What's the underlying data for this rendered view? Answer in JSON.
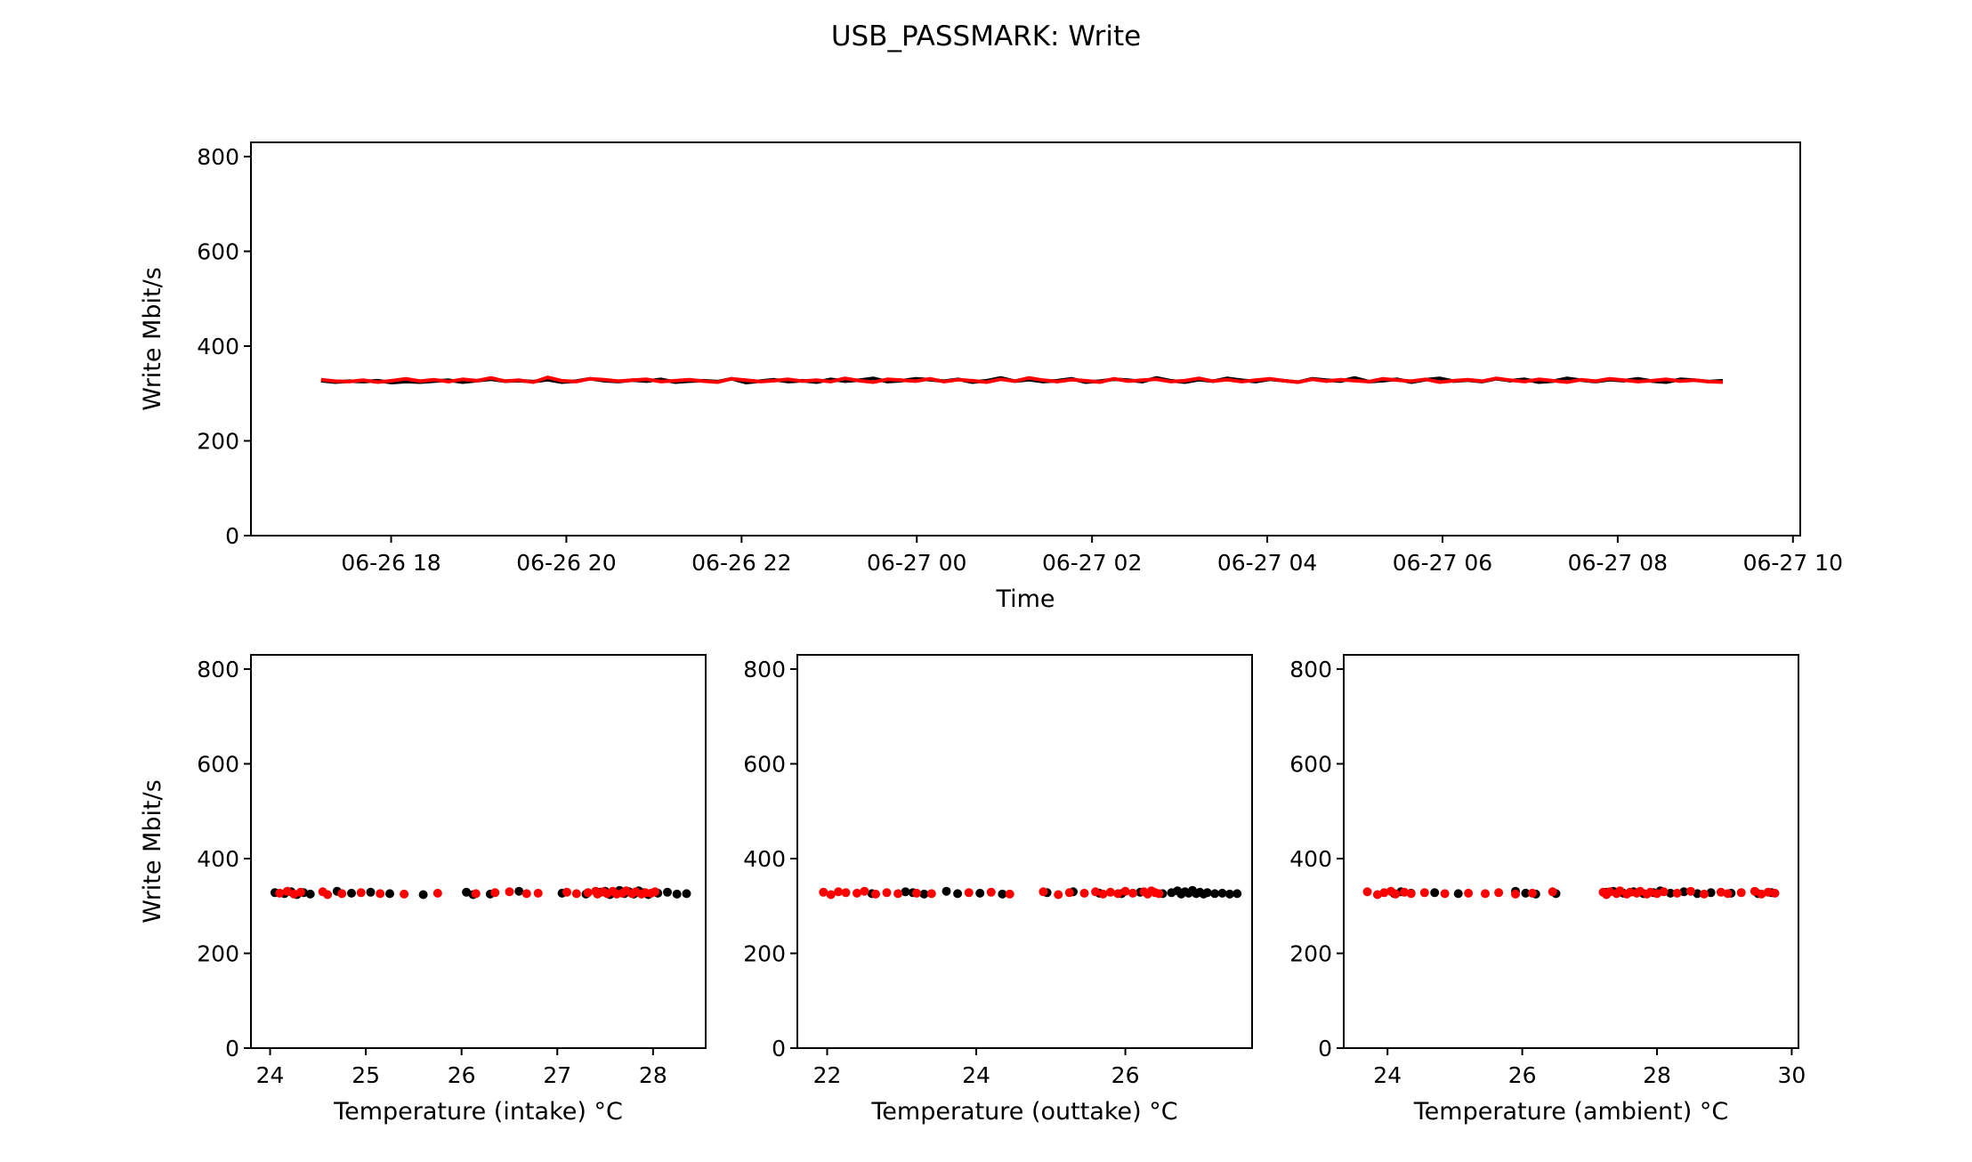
{
  "title": "USB_PASSMARK: Write",
  "chart_data": [
    {
      "type": "line",
      "title": "",
      "xlabel": "Time",
      "ylabel": "Write Mbit/s",
      "xlim": [
        "2019-06-26 16:24",
        "2019-06-27 10:05"
      ],
      "ylim": [
        0,
        830
      ],
      "x_tick_labels": [
        "06-26 18",
        "06-26 20",
        "06-26 22",
        "06-27 00",
        "06-27 02",
        "06-27 04",
        "06-27 06",
        "06-27 08",
        "06-27 10"
      ],
      "y_ticks": [
        0,
        200,
        400,
        600,
        800
      ],
      "grid": false,
      "x_start": "2019-06-26 17:12",
      "x_end": "2019-06-27 09:12",
      "series": [
        {
          "color": "#000000",
          "values": [
            327,
            324,
            326,
            325,
            327,
            323,
            325,
            324,
            326,
            328,
            324,
            327,
            330,
            326,
            327,
            325,
            329,
            324,
            326,
            331,
            327,
            325,
            328,
            326,
            330,
            324,
            326,
            327,
            325,
            331,
            323,
            326,
            329,
            325,
            327,
            324,
            330,
            326,
            328,
            332,
            325,
            327,
            331,
            329,
            326,
            330,
            324,
            327,
            333,
            326,
            329,
            325,
            327,
            331,
            324,
            326,
            330,
            328,
            325,
            333,
            327,
            324,
            329,
            326,
            332,
            328,
            325,
            330,
            327,
            324,
            331,
            328,
            326,
            333,
            325,
            327,
            330,
            324,
            329,
            332,
            326,
            328,
            325,
            331,
            327,
            330,
            324,
            326,
            332,
            328,
            325,
            329,
            327,
            331,
            326,
            324,
            330,
            328,
            325,
            327
          ]
        },
        {
          "color": "#ff0000",
          "values": [
            329,
            326,
            325,
            328,
            324,
            327,
            331,
            326,
            329,
            325,
            330,
            327,
            333,
            326,
            328,
            324,
            334,
            327,
            325,
            331,
            329,
            326,
            328,
            330,
            325,
            327,
            329,
            326,
            324,
            331,
            328,
            325,
            327,
            330,
            326,
            328,
            325,
            332,
            327,
            324,
            330,
            328,
            326,
            331,
            325,
            329,
            327,
            324,
            330,
            326,
            333,
            328,
            325,
            329,
            327,
            324,
            331,
            326,
            328,
            330,
            325,
            327,
            332,
            326,
            329,
            325,
            328,
            331,
            327,
            324,
            330,
            326,
            329,
            327,
            325,
            331,
            328,
            326,
            330,
            324,
            327,
            329,
            326,
            332,
            328,
            325,
            330,
            327,
            324,
            329,
            326,
            331,
            328,
            325,
            327,
            330,
            326,
            328,
            325,
            324
          ]
        }
      ]
    },
    {
      "type": "scatter",
      "title": "",
      "xlabel": "Temperature (intake) °C",
      "ylabel": "Write Mbit/s",
      "xlim": [
        23.8,
        28.55
      ],
      "ylim": [
        0,
        830
      ],
      "x_ticks": [
        24,
        25,
        26,
        27,
        28
      ],
      "y_ticks": [
        0,
        200,
        400,
        600,
        800
      ],
      "grid": false,
      "series": [
        {
          "color": "#000000",
          "points": [
            [
              24.05,
              328
            ],
            [
              24.15,
              326
            ],
            [
              24.22,
              330
            ],
            [
              24.28,
              324
            ],
            [
              24.35,
              328
            ],
            [
              24.42,
              325
            ],
            [
              24.7,
              331
            ],
            [
              24.85,
              327
            ],
            [
              25.05,
              329
            ],
            [
              25.25,
              326
            ],
            [
              25.6,
              324
            ],
            [
              26.05,
              329
            ],
            [
              26.12,
              324
            ],
            [
              26.3,
              325
            ],
            [
              26.6,
              331
            ],
            [
              27.05,
              327
            ],
            [
              27.3,
              325
            ],
            [
              27.45,
              329
            ],
            [
              27.5,
              331
            ],
            [
              27.55,
              324
            ],
            [
              27.6,
              328
            ],
            [
              27.65,
              333
            ],
            [
              27.7,
              326
            ],
            [
              27.75,
              330
            ],
            [
              27.8,
              325
            ],
            [
              27.85,
              332
            ],
            [
              27.9,
              328
            ],
            [
              27.95,
              324
            ],
            [
              28.05,
              327
            ],
            [
              28.15,
              329
            ],
            [
              28.25,
              325
            ],
            [
              28.35,
              326
            ]
          ]
        },
        {
          "color": "#ff0000",
          "points": [
            [
              24.1,
              327
            ],
            [
              24.18,
              331
            ],
            [
              24.25,
              325
            ],
            [
              24.32,
              329
            ],
            [
              24.55,
              330
            ],
            [
              24.6,
              324
            ],
            [
              24.75,
              326
            ],
            [
              24.95,
              328
            ],
            [
              25.15,
              326
            ],
            [
              25.4,
              325
            ],
            [
              25.75,
              327
            ],
            [
              26.15,
              326
            ],
            [
              26.35,
              328
            ],
            [
              26.5,
              330
            ],
            [
              26.68,
              326
            ],
            [
              26.8,
              327
            ],
            [
              27.1,
              329
            ],
            [
              27.2,
              326
            ],
            [
              27.32,
              328
            ],
            [
              27.4,
              331
            ],
            [
              27.42,
              325
            ],
            [
              27.48,
              330
            ],
            [
              27.52,
              326
            ],
            [
              27.58,
              331
            ],
            [
              27.62,
              325
            ],
            [
              27.68,
              327
            ],
            [
              27.72,
              332
            ],
            [
              27.78,
              326
            ],
            [
              27.82,
              330
            ],
            [
              27.88,
              325
            ],
            [
              27.92,
              328
            ],
            [
              27.98,
              327
            ],
            [
              28.02,
              330
            ]
          ]
        }
      ]
    },
    {
      "type": "scatter",
      "title": "",
      "xlabel": "Temperature (outtake) °C",
      "ylabel": "",
      "xlim": [
        21.6,
        27.7
      ],
      "ylim": [
        0,
        830
      ],
      "x_ticks": [
        22,
        24,
        26
      ],
      "y_ticks": [
        0,
        200,
        400,
        600,
        800
      ],
      "grid": false,
      "series": [
        {
          "color": "#000000",
          "points": [
            [
              22.6,
              326
            ],
            [
              23.05,
              330
            ],
            [
              23.15,
              328
            ],
            [
              23.3,
              325
            ],
            [
              23.6,
              331
            ],
            [
              23.75,
              326
            ],
            [
              24.05,
              327
            ],
            [
              24.35,
              325
            ],
            [
              24.95,
              328
            ],
            [
              25.3,
              330
            ],
            [
              25.65,
              327
            ],
            [
              25.95,
              326
            ],
            [
              26.2,
              329
            ],
            [
              26.5,
              326
            ],
            [
              26.62,
              328
            ],
            [
              26.7,
              332
            ],
            [
              26.75,
              325
            ],
            [
              26.8,
              330
            ],
            [
              26.85,
              327
            ],
            [
              26.9,
              333
            ],
            [
              26.95,
              326
            ],
            [
              27.0,
              329
            ],
            [
              27.05,
              325
            ],
            [
              27.1,
              328
            ],
            [
              27.2,
              326
            ],
            [
              27.3,
              327
            ],
            [
              27.4,
              325
            ],
            [
              27.5,
              326
            ]
          ]
        },
        {
          "color": "#ff0000",
          "points": [
            [
              21.95,
              329
            ],
            [
              22.05,
              324
            ],
            [
              22.15,
              330
            ],
            [
              22.25,
              328
            ],
            [
              22.4,
              327
            ],
            [
              22.5,
              331
            ],
            [
              22.65,
              325
            ],
            [
              22.8,
              328
            ],
            [
              22.95,
              326
            ],
            [
              23.2,
              327
            ],
            [
              23.4,
              326
            ],
            [
              23.9,
              328
            ],
            [
              24.2,
              329
            ],
            [
              24.45,
              325
            ],
            [
              24.9,
              330
            ],
            [
              25.1,
              324
            ],
            [
              25.25,
              328
            ],
            [
              25.45,
              327
            ],
            [
              25.6,
              330
            ],
            [
              25.7,
              325
            ],
            [
              25.8,
              329
            ],
            [
              25.9,
              326
            ],
            [
              26.0,
              331
            ],
            [
              26.1,
              327
            ],
            [
              26.25,
              330
            ],
            [
              26.3,
              325
            ],
            [
              26.35,
              332
            ],
            [
              26.4,
              328
            ],
            [
              26.45,
              326
            ]
          ]
        }
      ]
    },
    {
      "type": "scatter",
      "title": "",
      "xlabel": "Temperature (ambient) °C",
      "ylabel": "",
      "xlim": [
        23.35,
        30.1
      ],
      "ylim": [
        0,
        830
      ],
      "x_ticks": [
        24,
        26,
        28,
        30
      ],
      "y_ticks": [
        0,
        200,
        400,
        600,
        800
      ],
      "grid": false,
      "series": [
        {
          "color": "#000000",
          "points": [
            [
              24.1,
              326
            ],
            [
              24.2,
              330
            ],
            [
              24.35,
              327
            ],
            [
              24.7,
              328
            ],
            [
              25.05,
              326
            ],
            [
              25.9,
              331
            ],
            [
              26.05,
              327
            ],
            [
              26.2,
              325
            ],
            [
              26.5,
              326
            ],
            [
              27.25,
              329
            ],
            [
              27.35,
              331
            ],
            [
              27.5,
              327
            ],
            [
              27.65,
              330
            ],
            [
              27.8,
              326
            ],
            [
              27.95,
              328
            ],
            [
              28.05,
              332
            ],
            [
              28.2,
              327
            ],
            [
              28.4,
              330
            ],
            [
              28.6,
              326
            ],
            [
              28.8,
              328
            ],
            [
              29.1,
              327
            ],
            [
              29.5,
              326
            ],
            [
              29.7,
              328
            ]
          ]
        },
        {
          "color": "#ff0000",
          "points": [
            [
              23.7,
              330
            ],
            [
              23.85,
              324
            ],
            [
              23.95,
              328
            ],
            [
              24.05,
              331
            ],
            [
              24.12,
              325
            ],
            [
              24.25,
              329
            ],
            [
              24.35,
              326
            ],
            [
              24.55,
              328
            ],
            [
              24.85,
              326
            ],
            [
              25.2,
              327
            ],
            [
              25.45,
              326
            ],
            [
              25.65,
              328
            ],
            [
              25.9,
              325
            ],
            [
              26.15,
              327
            ],
            [
              26.45,
              330
            ],
            [
              27.2,
              329
            ],
            [
              27.25,
              324
            ],
            [
              27.3,
              330
            ],
            [
              27.4,
              326
            ],
            [
              27.45,
              332
            ],
            [
              27.55,
              325
            ],
            [
              27.6,
              329
            ],
            [
              27.7,
              327
            ],
            [
              27.75,
              331
            ],
            [
              27.85,
              325
            ],
            [
              27.9,
              329
            ],
            [
              28.0,
              326
            ],
            [
              28.1,
              330
            ],
            [
              28.3,
              327
            ],
            [
              28.5,
              331
            ],
            [
              28.7,
              325
            ],
            [
              28.95,
              329
            ],
            [
              29.05,
              326
            ],
            [
              29.25,
              328
            ],
            [
              29.45,
              331
            ],
            [
              29.55,
              325
            ],
            [
              29.65,
              329
            ],
            [
              29.75,
              327
            ]
          ]
        }
      ]
    }
  ]
}
